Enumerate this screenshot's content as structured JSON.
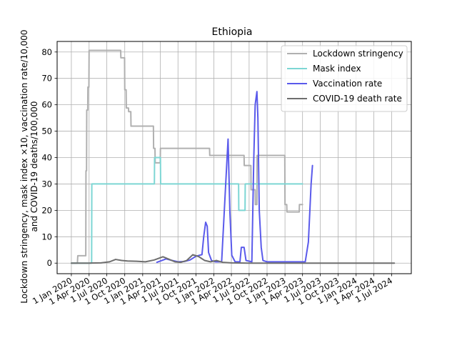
{
  "chart_data": {
    "type": "line",
    "title": "Ethiopia",
    "ylabel_lines": [
      "Lockdown stringency, mask index ×10, vaccination rate/10,000",
      "and COVID-19 deaths/100,000"
    ],
    "xlabel": "",
    "ylim": [
      -4,
      84
    ],
    "yticks": [
      0,
      10,
      20,
      30,
      40,
      50,
      60,
      70,
      80
    ],
    "xlim": [
      "2019-10-20",
      "2024-10-10"
    ],
    "xticks": [
      {
        "date": "2020-01-01",
        "label": "1 Jan 2020"
      },
      {
        "date": "2020-04-01",
        "label": "1 Apr 2020"
      },
      {
        "date": "2020-07-01",
        "label": "1 Jul 2020"
      },
      {
        "date": "2020-10-01",
        "label": "1 Oct 2020"
      },
      {
        "date": "2021-01-01",
        "label": "1 Jan 2021"
      },
      {
        "date": "2021-04-01",
        "label": "1 Apr 2021"
      },
      {
        "date": "2021-07-01",
        "label": "1 Jul 2021"
      },
      {
        "date": "2021-10-01",
        "label": "1 Oct 2021"
      },
      {
        "date": "2022-01-01",
        "label": "1 Jan 2022"
      },
      {
        "date": "2022-04-01",
        "label": "1 Apr 2022"
      },
      {
        "date": "2022-07-01",
        "label": "1 Jul 2022"
      },
      {
        "date": "2022-10-01",
        "label": "1 Oct 2022"
      },
      {
        "date": "2023-01-01",
        "label": "1 Jan 2023"
      },
      {
        "date": "2023-04-01",
        "label": "1 Apr 2023"
      },
      {
        "date": "2023-07-01",
        "label": "1 Jul 2023"
      },
      {
        "date": "2023-10-01",
        "label": "1 Oct 2023"
      },
      {
        "date": "2024-01-01",
        "label": "1 Jan 2024"
      },
      {
        "date": "2024-04-01",
        "label": "1 Apr 2024"
      },
      {
        "date": "2024-07-01",
        "label": "1 Jul 2024"
      }
    ],
    "grid": true,
    "legend_position": "top-right",
    "series": [
      {
        "name": "Lockdown stringency",
        "color": "#b0b0b0",
        "opacity": 1,
        "step": true,
        "points": [
          [
            "2020-01-01",
            0
          ],
          [
            "2020-02-01",
            0
          ],
          [
            "2020-02-03",
            2.8
          ],
          [
            "2020-03-15",
            2.8
          ],
          [
            "2020-03-16",
            35
          ],
          [
            "2020-03-19",
            35
          ],
          [
            "2020-03-20",
            58
          ],
          [
            "2020-03-25",
            58
          ],
          [
            "2020-03-26",
            66.7
          ],
          [
            "2020-03-31",
            66.7
          ],
          [
            "2020-04-01",
            80.6
          ],
          [
            "2020-09-10",
            80.6
          ],
          [
            "2020-09-11",
            77.8
          ],
          [
            "2020-09-30",
            77.8
          ],
          [
            "2020-10-01",
            65.7
          ],
          [
            "2020-10-08",
            65.7
          ],
          [
            "2020-10-09",
            58.8
          ],
          [
            "2020-10-20",
            58.8
          ],
          [
            "2020-10-21",
            57.4
          ],
          [
            "2020-11-01",
            57.4
          ],
          [
            "2020-11-02",
            51.9
          ],
          [
            "2021-02-25",
            51.9
          ],
          [
            "2021-02-26",
            43.5
          ],
          [
            "2021-03-05",
            43.5
          ],
          [
            "2021-03-06",
            38
          ],
          [
            "2021-04-01",
            38
          ],
          [
            "2021-04-02",
            43.5
          ],
          [
            "2021-12-10",
            43.5
          ],
          [
            "2021-12-11",
            40.8
          ],
          [
            "2022-06-05",
            40.8
          ],
          [
            "2022-06-06",
            37
          ],
          [
            "2022-07-10",
            37
          ],
          [
            "2022-07-11",
            27.8
          ],
          [
            "2022-08-01",
            27.8
          ],
          [
            "2022-08-02",
            22.2
          ],
          [
            "2022-08-10",
            22.2
          ],
          [
            "2022-08-11",
            40.8
          ],
          [
            "2022-12-31",
            40.8
          ],
          [
            "2023-01-01",
            22.2
          ],
          [
            "2023-01-10",
            22.2
          ],
          [
            "2023-01-11",
            19.4
          ],
          [
            "2023-03-15",
            19.4
          ],
          [
            "2023-03-16",
            22.2
          ],
          [
            "2023-04-01",
            22.2
          ]
        ]
      },
      {
        "name": "Mask index",
        "color": "#7dd6d4",
        "opacity": 1,
        "step": true,
        "points": [
          [
            "2020-01-01",
            0
          ],
          [
            "2020-04-14",
            0
          ],
          [
            "2020-04-15",
            30
          ],
          [
            "2021-03-02",
            30
          ],
          [
            "2021-03-03",
            40
          ],
          [
            "2021-04-02",
            40
          ],
          [
            "2021-04-03",
            30
          ],
          [
            "2022-05-08",
            30
          ],
          [
            "2022-05-09",
            20
          ],
          [
            "2022-06-10",
            20
          ],
          [
            "2022-06-11",
            30
          ],
          [
            "2023-04-01",
            30
          ]
        ]
      },
      {
        "name": "Vaccination rate",
        "color": "#5a5aeb",
        "opacity": 1,
        "step": false,
        "points": [
          [
            "2021-03-15",
            0.3
          ],
          [
            "2021-05-01",
            1.6
          ],
          [
            "2021-06-01",
            1
          ],
          [
            "2021-07-01",
            0.5
          ],
          [
            "2021-08-01",
            0.6
          ],
          [
            "2021-09-01",
            1.2
          ],
          [
            "2021-10-01",
            2.6
          ],
          [
            "2021-10-20",
            3
          ],
          [
            "2021-11-01",
            3.2
          ],
          [
            "2021-11-10",
            10
          ],
          [
            "2021-11-20",
            15.5
          ],
          [
            "2021-11-28",
            14
          ],
          [
            "2021-12-05",
            4
          ],
          [
            "2021-12-20",
            1
          ],
          [
            "2022-01-10",
            0.5
          ],
          [
            "2022-02-10",
            0.5
          ],
          [
            "2022-03-05",
            33
          ],
          [
            "2022-03-15",
            47
          ],
          [
            "2022-03-24",
            20
          ],
          [
            "2022-04-03",
            3
          ],
          [
            "2022-04-20",
            0.5
          ],
          [
            "2022-05-15",
            0.5
          ],
          [
            "2022-05-22",
            6
          ],
          [
            "2022-06-05",
            6
          ],
          [
            "2022-06-15",
            1
          ],
          [
            "2022-07-15",
            0.5
          ],
          [
            "2022-07-25",
            40
          ],
          [
            "2022-08-01",
            60
          ],
          [
            "2022-08-10",
            65
          ],
          [
            "2022-08-15",
            55
          ],
          [
            "2022-08-22",
            20
          ],
          [
            "2022-09-01",
            6
          ],
          [
            "2022-09-10",
            1
          ],
          [
            "2022-10-01",
            0.5
          ],
          [
            "2023-04-01",
            0.5
          ],
          [
            "2023-04-15",
            0.5
          ],
          [
            "2023-05-01",
            8
          ],
          [
            "2023-05-15",
            30
          ],
          [
            "2023-05-22",
            37
          ]
        ]
      },
      {
        "name": "COVID-19 death rate",
        "color": "#6e6e6e",
        "opacity": 1,
        "step": false,
        "points": [
          [
            "2020-01-01",
            0
          ],
          [
            "2020-04-01",
            0
          ],
          [
            "2020-06-01",
            0.1
          ],
          [
            "2020-07-15",
            0.5
          ],
          [
            "2020-08-15",
            1.4
          ],
          [
            "2020-09-15",
            1
          ],
          [
            "2020-10-15",
            0.8
          ],
          [
            "2020-12-01",
            0.7
          ],
          [
            "2021-01-15",
            0.5
          ],
          [
            "2021-03-01",
            1.2
          ],
          [
            "2021-04-15",
            2.4
          ],
          [
            "2021-05-15",
            1.5
          ],
          [
            "2021-06-15",
            0.5
          ],
          [
            "2021-07-15",
            0.3
          ],
          [
            "2021-08-15",
            1
          ],
          [
            "2021-09-15",
            3.2
          ],
          [
            "2021-10-15",
            2.5
          ],
          [
            "2021-11-15",
            1
          ],
          [
            "2021-12-15",
            0.5
          ],
          [
            "2022-01-15",
            1
          ],
          [
            "2022-02-15",
            0.3
          ],
          [
            "2022-04-01",
            0.1
          ],
          [
            "2022-07-01",
            0
          ],
          [
            "2023-01-01",
            0
          ],
          [
            "2024-07-15",
            0
          ]
        ]
      }
    ]
  }
}
